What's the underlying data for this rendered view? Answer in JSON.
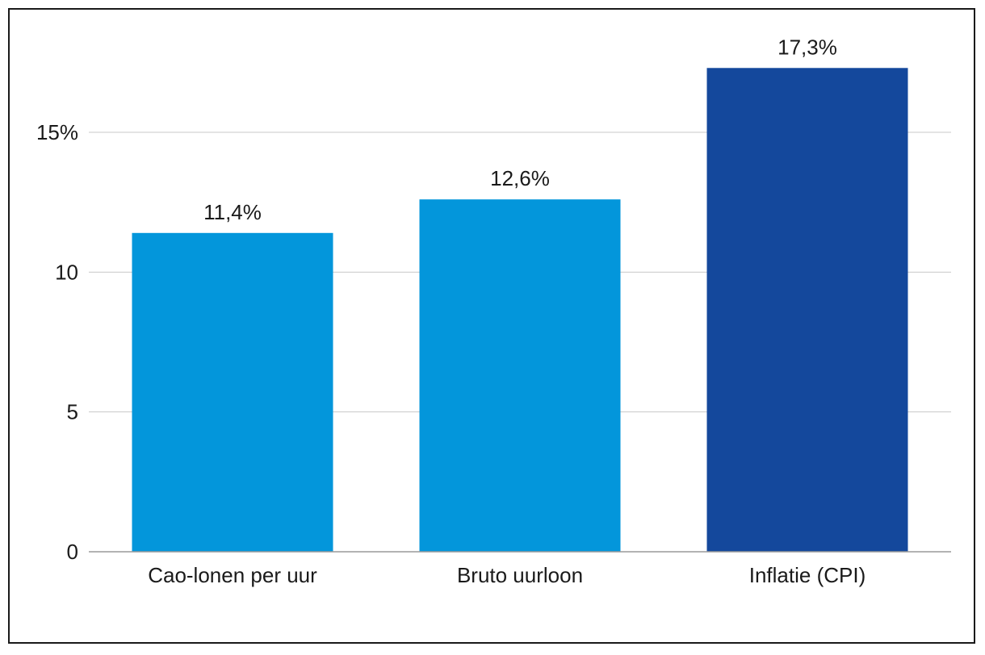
{
  "chart_data": {
    "type": "bar",
    "categories": [
      "Cao-lonen per uur",
      "Bruto uurloon",
      "Inflatie (CPI)"
    ],
    "values": [
      11.4,
      12.6,
      17.3
    ],
    "data_labels": [
      "11,4%",
      "12,6%",
      "17,3%"
    ],
    "colors": [
      "#0396db",
      "#0396db",
      "#14489c"
    ],
    "title": "",
    "xlabel": "",
    "ylabel": "",
    "ylim": [
      0,
      18
    ],
    "y_ticks": [
      0,
      5,
      10,
      15
    ],
    "y_tick_labels": [
      "0",
      "5",
      "10",
      "15%"
    ],
    "grid": true,
    "legend": "none"
  }
}
